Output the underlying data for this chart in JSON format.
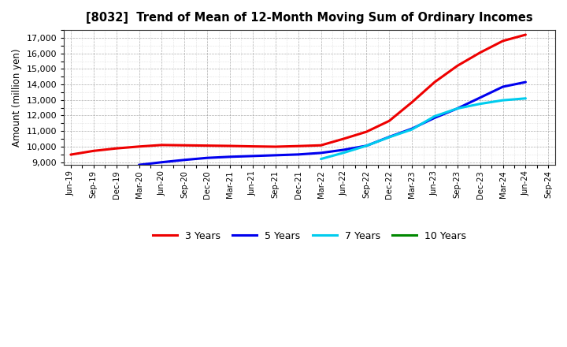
{
  "title": "[8032]  Trend of Mean of 12-Month Moving Sum of Ordinary Incomes",
  "ylabel": "Amount (million yen)",
  "background_color": "#ffffff",
  "plot_bg_color": "#ffffff",
  "grid_major_color": "#999999",
  "grid_minor_color": "#bbbbbb",
  "ylim": [
    8800,
    17500
  ],
  "yticks": [
    9000,
    10000,
    11000,
    12000,
    13000,
    14000,
    15000,
    16000,
    17000
  ],
  "x_labels": [
    "Jun-19",
    "Sep-19",
    "Dec-19",
    "Mar-20",
    "Jun-20",
    "Sep-20",
    "Dec-20",
    "Mar-21",
    "Jun-21",
    "Sep-21",
    "Dec-21",
    "Mar-22",
    "Jun-22",
    "Sep-22",
    "Dec-22",
    "Mar-23",
    "Jun-23",
    "Sep-23",
    "Dec-23",
    "Mar-24",
    "Jun-24",
    "Sep-24"
  ],
  "series": {
    "3 Years": {
      "color": "#ee0000",
      "data_x": [
        0,
        1,
        2,
        3,
        4,
        5,
        6,
        7,
        8,
        9,
        10,
        11,
        12,
        13,
        14,
        15,
        16,
        17,
        18,
        19,
        20
      ],
      "data_y": [
        9480,
        9720,
        9880,
        10000,
        10100,
        10080,
        10060,
        10040,
        10010,
        9990,
        10030,
        10080,
        10500,
        10950,
        11650,
        12850,
        14150,
        15200,
        16050,
        16800,
        17200
      ]
    },
    "5 Years": {
      "color": "#0000ee",
      "data_x": [
        3,
        4,
        5,
        6,
        7,
        8,
        9,
        10,
        11,
        12,
        13,
        14,
        15,
        16,
        17,
        18,
        19,
        20
      ],
      "data_y": [
        8820,
        8990,
        9140,
        9270,
        9340,
        9390,
        9440,
        9490,
        9590,
        9790,
        10050,
        10620,
        11150,
        11850,
        12450,
        13150,
        13850,
        14150
      ]
    },
    "7 Years": {
      "color": "#00ccee",
      "data_x": [
        11,
        12,
        13,
        14,
        15,
        16,
        17,
        18,
        19,
        20
      ],
      "data_y": [
        9200,
        9600,
        10050,
        10600,
        11100,
        11950,
        12450,
        12750,
        12980,
        13100
      ]
    },
    "10 Years": {
      "color": "#008800",
      "data_x": [],
      "data_y": []
    }
  },
  "legend_labels": [
    "3 Years",
    "5 Years",
    "7 Years",
    "10 Years"
  ],
  "legend_colors": [
    "#ee0000",
    "#0000ee",
    "#00ccee",
    "#008800"
  ]
}
